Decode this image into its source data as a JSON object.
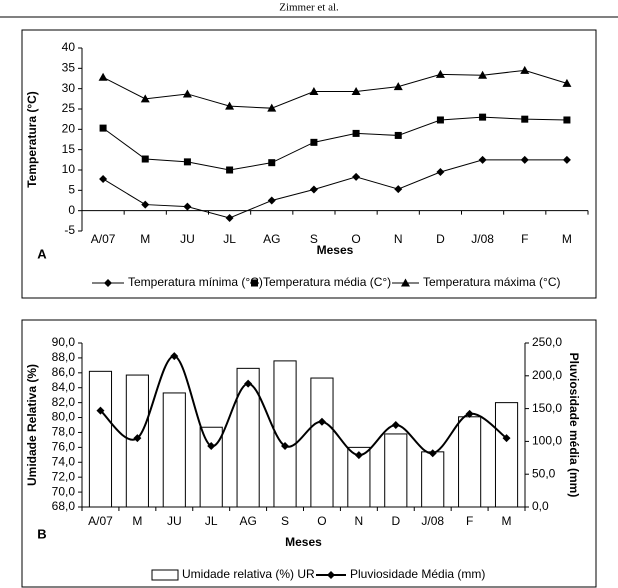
{
  "header": "Zimmer et al.",
  "chart_data": [
    {
      "type": "line",
      "panel_label": "A",
      "xlabel": "Meses",
      "ylabel": "Temperatura (°C)",
      "categories": [
        "A/07",
        "M",
        "JU",
        "JL",
        "AG",
        "S",
        "O",
        "N",
        "D",
        "J/08",
        "F",
        "M"
      ],
      "ylim": [
        -5,
        40
      ],
      "yticks": [
        -5,
        0,
        5,
        10,
        15,
        20,
        25,
        30,
        35,
        40
      ],
      "series": [
        {
          "name": "Temperatura mínima (°C)",
          "color": "#000000",
          "marker": "diamond",
          "values": [
            7.8,
            1.5,
            1.0,
            -1.8,
            2.5,
            5.2,
            8.3,
            5.3,
            9.5,
            12.5,
            12.5,
            12.5
          ]
        },
        {
          "name": "Temperatura média (C°)",
          "color": "#000000",
          "marker": "square",
          "values": [
            20.3,
            12.7,
            12.0,
            10.0,
            11.8,
            16.8,
            19.0,
            18.5,
            22.3,
            23.0,
            22.5,
            22.3
          ]
        },
        {
          "name": "Temperatura máxima (°C)",
          "color": "#000000",
          "marker": "triangle",
          "values": [
            32.8,
            27.5,
            28.7,
            25.7,
            25.2,
            29.3,
            29.3,
            30.5,
            33.5,
            33.3,
            34.5,
            31.3
          ]
        }
      ]
    },
    {
      "type": "bar",
      "panel_label": "B",
      "xlabel": "Meses",
      "ylabel": "Umidade Relativa (%)",
      "y2label": "Pluviosidade média (mm)",
      "categories": [
        "A/07",
        "M",
        "JU",
        "JL",
        "AG",
        "S",
        "O",
        "N",
        "D",
        "J/08",
        "F",
        "M"
      ],
      "ylim": [
        68,
        90
      ],
      "yticks": [
        {
          "value": 68,
          "label": "68,0"
        },
        {
          "value": 70,
          "label": "70,0"
        },
        {
          "value": 72,
          "label": "72,0"
        },
        {
          "value": 74,
          "label": "74,0"
        },
        {
          "value": 76,
          "label": "76,0"
        },
        {
          "value": 78,
          "label": "78,0"
        },
        {
          "value": 80,
          "label": "80,0"
        },
        {
          "value": 82,
          "label": "82,0"
        },
        {
          "value": 84,
          "label": "84,0"
        },
        {
          "value": 86,
          "label": "86,0"
        },
        {
          "value": 88,
          "label": "88,0"
        },
        {
          "value": 90,
          "label": "90,0"
        }
      ],
      "y2lim": [
        0,
        250
      ],
      "y2ticks": [
        {
          "value": 0,
          "label": "0,0"
        },
        {
          "value": 50,
          "label": "50,0"
        },
        {
          "value": 100,
          "label": "100,0"
        },
        {
          "value": 150,
          "label": "150,0"
        },
        {
          "value": 200,
          "label": "200,0"
        },
        {
          "value": 250,
          "label": "250,0"
        }
      ],
      "series": [
        {
          "name": "Umidade relativa (%) UR",
          "type": "bar",
          "color": "#ffffff",
          "values": [
            86.2,
            85.7,
            83.3,
            78.7,
            86.6,
            87.6,
            85.3,
            76.0,
            77.8,
            75.4,
            80.1,
            82.0
          ]
        },
        {
          "name": "Pluviosidade Média (mm)",
          "type": "line",
          "axis": "y2",
          "color": "#000000",
          "marker": "diamond",
          "values": [
            147,
            105,
            230,
            93,
            188,
            93,
            130,
            79,
            125,
            82,
            142,
            105
          ]
        }
      ]
    }
  ]
}
